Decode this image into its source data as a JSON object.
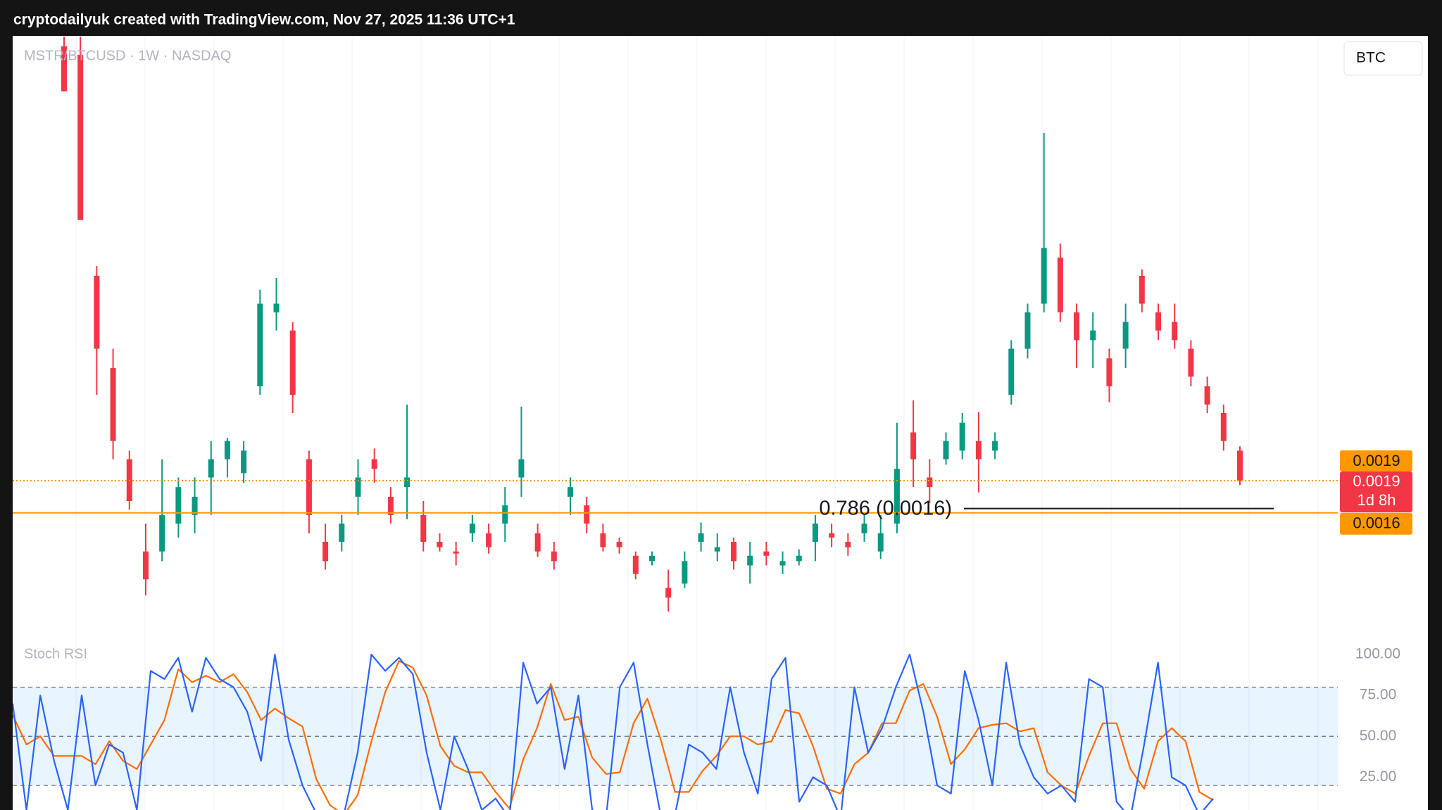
{
  "header": {
    "title": "cryptodailyuk created with TradingView.com, Nov 27, 2025 11:36 UTC+1"
  },
  "toolbar": {
    "currency_button": "BTC"
  },
  "chart_data": [
    {
      "type": "candlestick",
      "title": "MSTR/BTCUSD · 1W · NASDAQ",
      "up_color": "#089981",
      "down_color": "#f23645",
      "ylim": [
        0.00047,
        0.00604
      ],
      "open": [
        0.00595,
        0.00587,
        0.00381,
        0.00295,
        0.0021,
        0.00124,
        0.00124,
        0.0015,
        0.00158,
        0.00193,
        0.0021,
        0.00197,
        0.00278,
        0.00347,
        0.0033,
        0.0021,
        0.00133,
        0.00133,
        0.00175,
        0.0021,
        0.00175,
        0.00184,
        0.00158,
        0.00133,
        0.00124,
        0.00141,
        0.00141,
        0.0015,
        0.00193,
        0.00141,
        0.00124,
        0.00175,
        0.00167,
        0.00141,
        0.00133,
        0.0012,
        0.00115,
        0.0009,
        0.00094,
        0.00133,
        0.00124,
        0.00133,
        0.00111,
        0.00124,
        0.00111,
        0.00115,
        0.00133,
        0.00141,
        0.00133,
        0.00141,
        0.00124,
        0.0015,
        0.00235,
        0.00193,
        0.0021,
        0.00218,
        0.00227,
        0.00218,
        0.0027,
        0.00313,
        0.00355,
        0.00398,
        0.00347,
        0.00321,
        0.00304,
        0.00313,
        0.00381,
        0.00347,
        0.00338,
        0.00313,
        0.00278,
        0.00253,
        0.00218
      ],
      "high": [
        0.00604,
        0.00604,
        0.0039,
        0.00313,
        0.00218,
        0.0015,
        0.0021,
        0.00193,
        0.00193,
        0.00227,
        0.0023,
        0.00227,
        0.00368,
        0.00379,
        0.00338,
        0.00218,
        0.0015,
        0.00158,
        0.0021,
        0.0022,
        0.00184,
        0.00261,
        0.00171,
        0.00141,
        0.00133,
        0.00158,
        0.0015,
        0.00184,
        0.00259,
        0.0015,
        0.00133,
        0.00193,
        0.00175,
        0.0015,
        0.00137,
        0.00124,
        0.00124,
        0.00107,
        0.00124,
        0.00151,
        0.00141,
        0.00137,
        0.00133,
        0.00133,
        0.00124,
        0.00126,
        0.00158,
        0.0015,
        0.00141,
        0.00158,
        0.00158,
        0.00244,
        0.00265,
        0.0021,
        0.00235,
        0.00253,
        0.00254,
        0.00235,
        0.00321,
        0.00355,
        0.00514,
        0.00411,
        0.00355,
        0.00347,
        0.00313,
        0.00355,
        0.00387,
        0.00355,
        0.00355,
        0.00321,
        0.00287,
        0.00261,
        0.00222
      ],
      "low": [
        0.00553,
        0.00433,
        0.0027,
        0.0021,
        0.00163,
        0.00083,
        0.00115,
        0.00137,
        0.00141,
        0.00158,
        0.00193,
        0.00188,
        0.0027,
        0.0033,
        0.00253,
        0.00141,
        0.00107,
        0.00124,
        0.00158,
        0.00188,
        0.0015,
        0.00154,
        0.00124,
        0.00124,
        0.00111,
        0.00133,
        0.00122,
        0.00133,
        0.00175,
        0.00119,
        0.00107,
        0.00158,
        0.00141,
        0.00124,
        0.00122,
        0.00098,
        0.00111,
        0.00068,
        0.0009,
        0.00124,
        0.00115,
        0.00107,
        0.00094,
        0.00111,
        0.00103,
        0.00111,
        0.00115,
        0.00128,
        0.0012,
        0.00133,
        0.00117,
        0.00141,
        0.00184,
        0.00169,
        0.00205,
        0.0021,
        0.00179,
        0.0021,
        0.00261,
        0.00304,
        0.00347,
        0.00338,
        0.00295,
        0.00295,
        0.00263,
        0.00295,
        0.00347,
        0.00321,
        0.00313,
        0.00278,
        0.00253,
        0.00218,
        0.00186
      ],
      "close": [
        0.00553,
        0.00433,
        0.00313,
        0.00227,
        0.00171,
        0.00098,
        0.00158,
        0.00184,
        0.00175,
        0.0021,
        0.00227,
        0.00218,
        0.00355,
        0.00355,
        0.0027,
        0.00158,
        0.00115,
        0.0015,
        0.00193,
        0.00201,
        0.00158,
        0.00193,
        0.00133,
        0.00128,
        0.00122,
        0.0015,
        0.00128,
        0.00167,
        0.0021,
        0.00124,
        0.00115,
        0.00184,
        0.0015,
        0.00128,
        0.00128,
        0.00103,
        0.0012,
        0.00081,
        0.00115,
        0.00141,
        0.00128,
        0.00115,
        0.0012,
        0.0012,
        0.00115,
        0.0012,
        0.0015,
        0.00137,
        0.00128,
        0.0015,
        0.00141,
        0.00201,
        0.0021,
        0.00184,
        0.00227,
        0.00244,
        0.0021,
        0.00227,
        0.00313,
        0.00347,
        0.00407,
        0.00347,
        0.00321,
        0.0033,
        0.00278,
        0.00338,
        0.00355,
        0.0033,
        0.00321,
        0.00287,
        0.00261,
        0.00227,
        0.0019
      ],
      "horizontal_lines": [
        {
          "value": 0.0019,
          "color": "#ff9800",
          "style": "dotted"
        },
        {
          "value": 0.0016,
          "color": "#ff9800",
          "style": "solid"
        }
      ],
      "last_price": {
        "value": 0.0019,
        "countdown": "1d 8h",
        "color": "#f23645"
      },
      "fib_level": {
        "label": "0.786 (0.0016)",
        "value": 0.00164
      }
    },
    {
      "type": "line",
      "title": "Stoch RSI",
      "ylim": [
        5,
        100
      ],
      "yticks": [
        {
          "value": 100,
          "label": "100.00"
        },
        {
          "value": 75,
          "label": "75.00"
        },
        {
          "value": 50,
          "label": "50.00"
        },
        {
          "value": 25,
          "label": "25.00"
        }
      ],
      "bands": {
        "upper": 80,
        "middle": 50,
        "lower": 20
      },
      "series": [
        {
          "name": "%K",
          "color": "#2962ff",
          "values": [
            70,
            5,
            75,
            35,
            5,
            75,
            20,
            45,
            40,
            5,
            90,
            85,
            98,
            65,
            98,
            85,
            80,
            65,
            35,
            100,
            48,
            20,
            3,
            0,
            2,
            40,
            100,
            90,
            98,
            88,
            40,
            5,
            50,
            30,
            5,
            12,
            0,
            95,
            70,
            80,
            30,
            75,
            5,
            0,
            80,
            95,
            45,
            0,
            2,
            45,
            40,
            30,
            80,
            40,
            15,
            85,
            98,
            10,
            25,
            20,
            0,
            80,
            40,
            55,
            80,
            100,
            65,
            20,
            15,
            90,
            60,
            20,
            95,
            45,
            25,
            15,
            20,
            10,
            85,
            80,
            10,
            0,
            45,
            95,
            25,
            20,
            2,
            12
          ]
        },
        {
          "name": "%D",
          "color": "#ff6d00",
          "values": [
            63,
            45,
            50,
            38,
            38,
            38,
            33,
            47,
            35,
            30,
            45,
            60,
            91,
            83,
            87,
            83,
            88,
            77,
            60,
            67,
            61,
            56,
            24,
            8,
            2,
            14,
            47,
            77,
            96,
            92,
            75,
            44,
            32,
            28,
            28,
            16,
            6,
            36,
            55,
            82,
            60,
            62,
            37,
            27,
            28,
            58,
            73,
            47,
            16,
            16,
            29,
            38,
            50,
            50,
            45,
            47,
            66,
            64,
            44,
            18,
            15,
            33,
            40,
            58,
            58,
            78,
            82,
            62,
            33,
            42,
            55,
            57,
            58,
            53,
            55,
            28,
            20,
            15,
            38,
            58,
            58,
            30,
            18,
            47,
            55,
            47,
            16,
            11
          ]
        }
      ]
    }
  ]
}
